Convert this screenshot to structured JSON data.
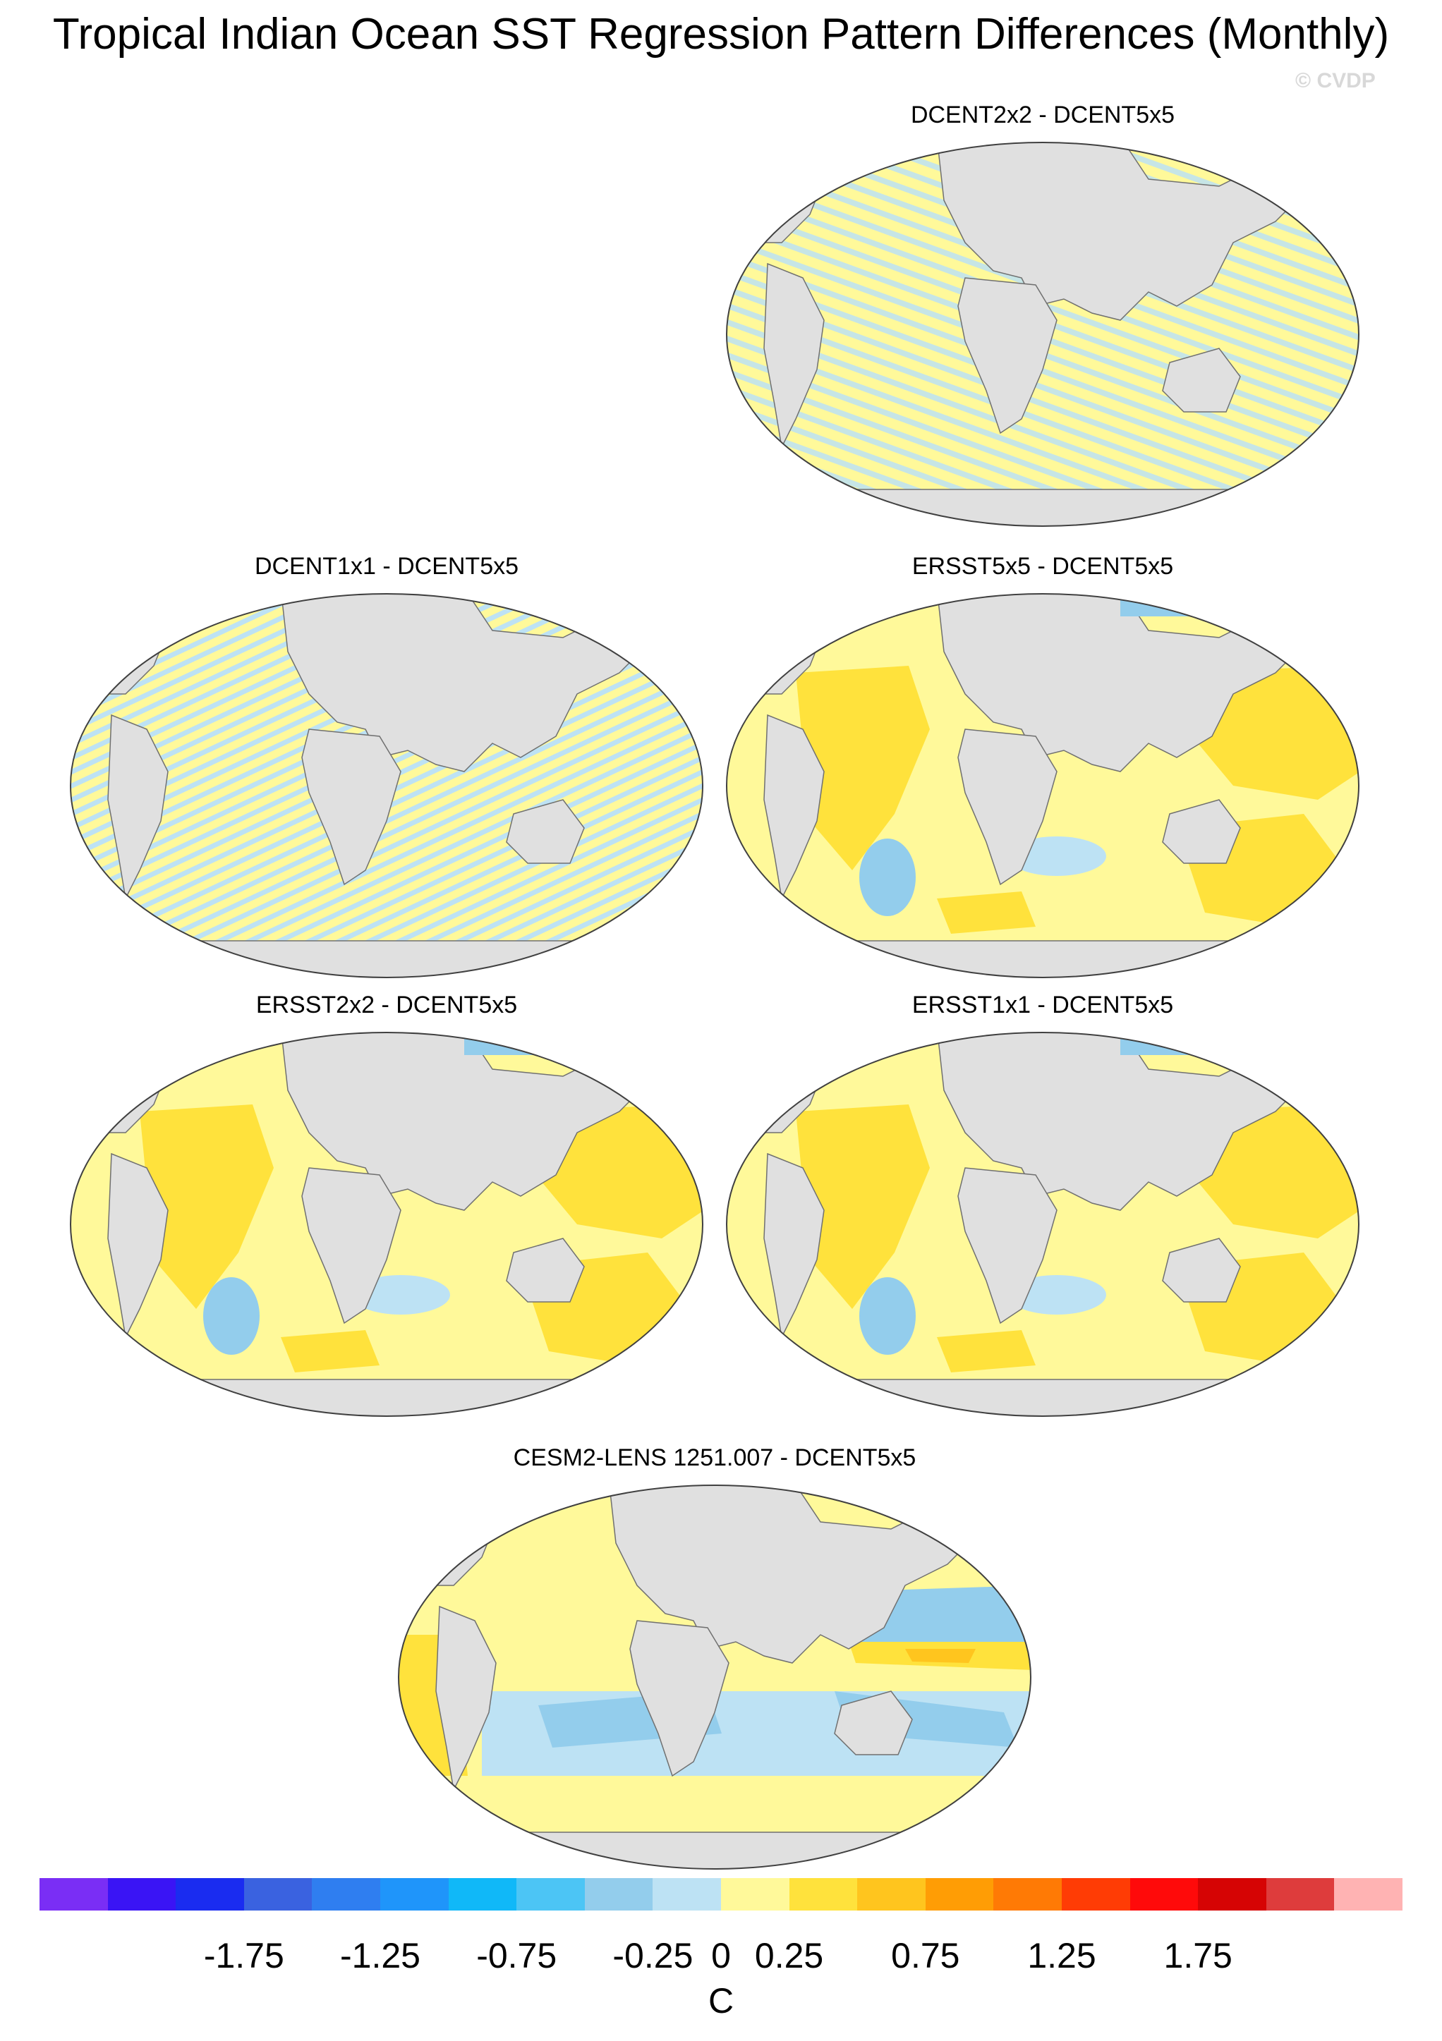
{
  "title": "Tropical Indian Ocean SST Regression Pattern Differences (Monthly)",
  "copyright": "© CVDP",
  "panels": [
    {
      "id": "p1",
      "label": "DCENT2x2 - DCENT5x5",
      "pattern": "striped-light"
    },
    {
      "id": "p2",
      "label": "DCENT1x1 - DCENT5x5",
      "pattern": "striped-light"
    },
    {
      "id": "p3",
      "label": "ERSST5x5 - DCENT5x5",
      "pattern": "positive-warm"
    },
    {
      "id": "p4",
      "label": "ERSST2x2 - DCENT5x5",
      "pattern": "positive-warm"
    },
    {
      "id": "p5",
      "label": "ERSST1x1 - DCENT5x5",
      "pattern": "positive-warm"
    },
    {
      "id": "p6",
      "label": "CESM2-LENS 1251.007 - DCENT5x5",
      "pattern": "mixed"
    }
  ],
  "colorbar": {
    "unit": "C",
    "colors": [
      "#7a2ef5",
      "#3a14f5",
      "#1a2cf0",
      "#3a62e0",
      "#2f7ef0",
      "#1f95fa",
      "#10b8f8",
      "#4cc5f5",
      "#93cdec",
      "#bde2f4",
      "#fff99a",
      "#ffe23c",
      "#ffc51e",
      "#ff9d05",
      "#ff7a05",
      "#ff3c05",
      "#ff0a0a",
      "#d60404",
      "#de3c3c",
      "#ffb3b3"
    ],
    "tick_labels": [
      "-1.75",
      "-1.25",
      "-0.75",
      "-0.25",
      "0",
      "0.25",
      "0.75",
      "1.25",
      "1.75"
    ],
    "tick_values": [
      -1.75,
      -1.25,
      -0.75,
      -0.25,
      0,
      0.25,
      0.75,
      1.25,
      1.75
    ]
  }
}
